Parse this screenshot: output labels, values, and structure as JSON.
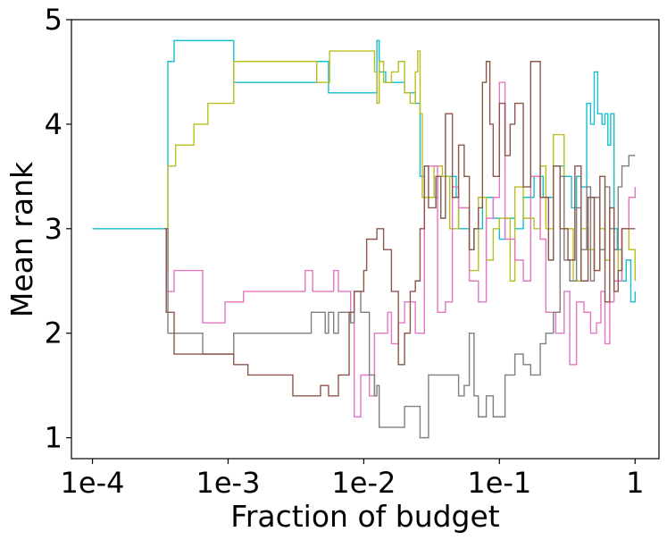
{
  "chart_data": {
    "type": "line",
    "title": "",
    "xlabel": "Fraction of budget",
    "ylabel": "Mean rank",
    "xscale": "log",
    "xlim": [
      7e-05,
      1.5
    ],
    "ylim": [
      0.8,
      5.0
    ],
    "grid": false,
    "legend": "none",
    "x_ticks": [
      {
        "value": 0.0001,
        "label": "1e-4"
      },
      {
        "value": 0.001,
        "label": "1e-3"
      },
      {
        "value": 0.01,
        "label": "1e-2"
      },
      {
        "value": 0.1,
        "label": "1e-1"
      },
      {
        "value": 1,
        "label": "1"
      }
    ],
    "y_ticks": [
      {
        "value": 1,
        "label": "1"
      },
      {
        "value": 2,
        "label": "2"
      },
      {
        "value": 3,
        "label": "3"
      },
      {
        "value": 4,
        "label": "4"
      },
      {
        "value": 5,
        "label": "5"
      }
    ],
    "series": [
      {
        "name": "cyan",
        "color": "#17becf",
        "points": [
          [
            0.0001,
            3.0
          ],
          [
            0.00034,
            3.0
          ],
          [
            0.00036,
            4.6
          ],
          [
            0.00039,
            4.6
          ],
          [
            0.0004,
            4.8
          ],
          [
            0.0011,
            4.8
          ],
          [
            0.0011,
            4.4
          ],
          [
            0.0045,
            4.4
          ],
          [
            0.0045,
            4.6
          ],
          [
            0.0055,
            4.6
          ],
          [
            0.0055,
            4.3
          ],
          [
            0.012,
            4.3
          ],
          [
            0.0125,
            4.8
          ],
          [
            0.013,
            4.5
          ],
          [
            0.0145,
            4.4
          ],
          [
            0.017,
            4.4
          ],
          [
            0.02,
            4.3
          ],
          [
            0.022,
            4.3
          ],
          [
            0.024,
            4.2
          ],
          [
            0.025,
            4.2
          ],
          [
            0.026,
            3.5
          ],
          [
            0.028,
            3.3
          ],
          [
            0.032,
            3.3
          ],
          [
            0.035,
            3.5
          ],
          [
            0.042,
            3.5
          ],
          [
            0.048,
            3.3
          ],
          [
            0.05,
            3.0
          ],
          [
            0.06,
            2.8
          ],
          [
            0.065,
            3.0
          ],
          [
            0.075,
            3.3
          ],
          [
            0.09,
            3.1
          ],
          [
            0.1,
            2.9
          ],
          [
            0.11,
            3.1
          ],
          [
            0.13,
            3.0
          ],
          [
            0.15,
            3.3
          ],
          [
            0.18,
            3.5
          ],
          [
            0.21,
            3.3
          ],
          [
            0.25,
            3.6
          ],
          [
            0.3,
            3.5
          ],
          [
            0.34,
            3.2
          ],
          [
            0.37,
            3.5
          ],
          [
            0.4,
            3.4
          ],
          [
            0.44,
            4.2
          ],
          [
            0.47,
            4.0
          ],
          [
            0.5,
            4.5
          ],
          [
            0.53,
            4.1
          ],
          [
            0.57,
            4.0
          ],
          [
            0.6,
            4.1
          ],
          [
            0.63,
            3.8
          ],
          [
            0.66,
            4.1
          ],
          [
            0.7,
            3.0
          ],
          [
            0.74,
            2.8
          ],
          [
            0.8,
            2.5
          ],
          [
            0.86,
            2.7
          ],
          [
            0.93,
            2.3
          ],
          [
            1.0,
            2.4
          ]
        ]
      },
      {
        "name": "olive",
        "color": "#bcbd22",
        "points": [
          [
            0.00034,
            3.0
          ],
          [
            0.00035,
            2.6
          ],
          [
            0.00036,
            3.6
          ],
          [
            0.0004,
            3.6
          ],
          [
            0.00041,
            3.8
          ],
          [
            0.00055,
            3.8
          ],
          [
            0.00056,
            4.0
          ],
          [
            0.0007,
            4.0
          ],
          [
            0.00071,
            4.2
          ],
          [
            0.0011,
            4.2
          ],
          [
            0.0011,
            4.6
          ],
          [
            0.0045,
            4.6
          ],
          [
            0.0045,
            4.4
          ],
          [
            0.0055,
            4.4
          ],
          [
            0.0056,
            4.7
          ],
          [
            0.011,
            4.7
          ],
          [
            0.012,
            4.5
          ],
          [
            0.0125,
            4.2
          ],
          [
            0.013,
            4.6
          ],
          [
            0.014,
            4.4
          ],
          [
            0.016,
            4.5
          ],
          [
            0.018,
            4.6
          ],
          [
            0.02,
            4.3
          ],
          [
            0.022,
            4.2
          ],
          [
            0.024,
            4.5
          ],
          [
            0.025,
            4.7
          ],
          [
            0.026,
            4.1
          ],
          [
            0.027,
            3.3
          ],
          [
            0.03,
            3.3
          ],
          [
            0.033,
            3.6
          ],
          [
            0.038,
            3.5
          ],
          [
            0.043,
            3.0
          ],
          [
            0.05,
            3.2
          ],
          [
            0.06,
            2.6
          ],
          [
            0.07,
            3.3
          ],
          [
            0.08,
            2.7
          ],
          [
            0.09,
            3.0
          ],
          [
            0.1,
            3.1
          ],
          [
            0.12,
            2.5
          ],
          [
            0.13,
            3.4
          ],
          [
            0.15,
            3.1
          ],
          [
            0.18,
            3.0
          ],
          [
            0.2,
            3.6
          ],
          [
            0.22,
            3.0
          ],
          [
            0.25,
            3.9
          ],
          [
            0.3,
            3.0
          ],
          [
            0.35,
            2.5
          ],
          [
            0.4,
            3.0
          ],
          [
            0.45,
            2.8
          ],
          [
            0.5,
            2.6
          ],
          [
            0.55,
            3.0
          ],
          [
            0.6,
            2.7
          ],
          [
            0.65,
            3.2
          ],
          [
            0.7,
            2.8
          ],
          [
            0.75,
            2.5
          ],
          [
            0.8,
            3.0
          ],
          [
            0.9,
            2.8
          ],
          [
            1.0,
            2.5
          ]
        ]
      },
      {
        "name": "pink",
        "color": "#e377c2",
        "points": [
          [
            0.00034,
            3.0
          ],
          [
            0.00035,
            2.4
          ],
          [
            0.00038,
            2.4
          ],
          [
            0.0004,
            2.6
          ],
          [
            0.00064,
            2.6
          ],
          [
            0.00065,
            2.1
          ],
          [
            0.0009,
            2.1
          ],
          [
            0.00095,
            2.3
          ],
          [
            0.0012,
            2.3
          ],
          [
            0.0013,
            2.4
          ],
          [
            0.0035,
            2.4
          ],
          [
            0.0037,
            2.6
          ],
          [
            0.004,
            2.6
          ],
          [
            0.0042,
            2.4
          ],
          [
            0.0055,
            2.4
          ],
          [
            0.006,
            2.6
          ],
          [
            0.0065,
            2.4
          ],
          [
            0.0075,
            2.4
          ],
          [
            0.008,
            2.2
          ],
          [
            0.0085,
            1.2
          ],
          [
            0.009,
            1.2
          ],
          [
            0.0095,
            1.6
          ],
          [
            0.01,
            1.6
          ],
          [
            0.011,
            1.4
          ],
          [
            0.012,
            2.0
          ],
          [
            0.013,
            2.0
          ],
          [
            0.015,
            2.2
          ],
          [
            0.016,
            1.9
          ],
          [
            0.018,
            2.1
          ],
          [
            0.02,
            2.3
          ],
          [
            0.024,
            2.0
          ],
          [
            0.027,
            2.0
          ],
          [
            0.028,
            3.6
          ],
          [
            0.032,
            3.6
          ],
          [
            0.035,
            2.2
          ],
          [
            0.04,
            2.3
          ],
          [
            0.045,
            3.4
          ],
          [
            0.05,
            3.2
          ],
          [
            0.06,
            2.5
          ],
          [
            0.07,
            2.3
          ],
          [
            0.08,
            3.1
          ],
          [
            0.09,
            3.3
          ],
          [
            0.1,
            4.4
          ],
          [
            0.11,
            2.9
          ],
          [
            0.13,
            2.7
          ],
          [
            0.15,
            2.5
          ],
          [
            0.17,
            3.5
          ],
          [
            0.2,
            2.9
          ],
          [
            0.22,
            2.2
          ],
          [
            0.26,
            2.0
          ],
          [
            0.3,
            2.4
          ],
          [
            0.33,
            1.7
          ],
          [
            0.37,
            2.3
          ],
          [
            0.42,
            2.2
          ],
          [
            0.47,
            2.0
          ],
          [
            0.52,
            2.1
          ],
          [
            0.56,
            2.4
          ],
          [
            0.6,
            1.9
          ],
          [
            0.65,
            2.3
          ],
          [
            0.7,
            2.5
          ],
          [
            0.8,
            3.0
          ],
          [
            0.9,
            3.3
          ],
          [
            1.0,
            3.4
          ]
        ]
      },
      {
        "name": "gray",
        "color": "#7f7f7f",
        "points": [
          [
            0.00034,
            3.0
          ],
          [
            0.00036,
            2.0
          ],
          [
            0.0006,
            2.0
          ],
          [
            0.00065,
            1.8
          ],
          [
            0.001,
            1.8
          ],
          [
            0.0011,
            2.0
          ],
          [
            0.004,
            2.0
          ],
          [
            0.0041,
            2.2
          ],
          [
            0.0048,
            2.2
          ],
          [
            0.0052,
            2.0
          ],
          [
            0.0055,
            2.2
          ],
          [
            0.006,
            2.0
          ],
          [
            0.0065,
            2.2
          ],
          [
            0.0075,
            2.2
          ],
          [
            0.008,
            2.1
          ],
          [
            0.0085,
            2.4
          ],
          [
            0.009,
            2.4
          ],
          [
            0.0095,
            2.2
          ],
          [
            0.01,
            2.2
          ],
          [
            0.011,
            1.6
          ],
          [
            0.012,
            1.4
          ],
          [
            0.0125,
            1.5
          ],
          [
            0.013,
            1.1
          ],
          [
            0.018,
            1.1
          ],
          [
            0.02,
            1.3
          ],
          [
            0.024,
            1.3
          ],
          [
            0.026,
            1.0
          ],
          [
            0.03,
            1.6
          ],
          [
            0.035,
            1.6
          ],
          [
            0.04,
            1.6
          ],
          [
            0.045,
            1.6
          ],
          [
            0.05,
            1.4
          ],
          [
            0.055,
            1.5
          ],
          [
            0.06,
            2.0
          ],
          [
            0.065,
            1.4
          ],
          [
            0.07,
            1.2
          ],
          [
            0.08,
            1.4
          ],
          [
            0.09,
            1.2
          ],
          [
            0.11,
            1.6
          ],
          [
            0.13,
            1.8
          ],
          [
            0.15,
            1.7
          ],
          [
            0.17,
            1.6
          ],
          [
            0.2,
            1.9
          ],
          [
            0.22,
            2.0
          ],
          [
            0.25,
            2.2
          ],
          [
            0.28,
            3.5
          ],
          [
            0.3,
            2.7
          ],
          [
            0.33,
            2.5
          ],
          [
            0.37,
            3.2
          ],
          [
            0.4,
            2.8
          ],
          [
            0.44,
            3.4
          ],
          [
            0.47,
            2.5
          ],
          [
            0.5,
            3.3
          ],
          [
            0.55,
            2.8
          ],
          [
            0.6,
            3.4
          ],
          [
            0.65,
            3.0
          ],
          [
            0.7,
            2.8
          ],
          [
            0.75,
            3.4
          ],
          [
            0.8,
            3.6
          ],
          [
            0.85,
            3.6
          ],
          [
            0.9,
            3.7
          ],
          [
            1.0,
            3.7
          ]
        ]
      },
      {
        "name": "brown",
        "color": "#8c564b",
        "points": [
          [
            0.00034,
            3.0
          ],
          [
            0.00035,
            2.2
          ],
          [
            0.00038,
            2.2
          ],
          [
            0.0004,
            1.8
          ],
          [
            0.001,
            1.8
          ],
          [
            0.0011,
            1.7
          ],
          [
            0.0013,
            1.7
          ],
          [
            0.0014,
            1.6
          ],
          [
            0.0028,
            1.6
          ],
          [
            0.003,
            1.4
          ],
          [
            0.0045,
            1.4
          ],
          [
            0.0048,
            1.5
          ],
          [
            0.0052,
            1.5
          ],
          [
            0.0055,
            1.4
          ],
          [
            0.006,
            1.4
          ],
          [
            0.0065,
            1.6
          ],
          [
            0.0075,
            1.6
          ],
          [
            0.0078,
            2.2
          ],
          [
            0.008,
            2.2
          ],
          [
            0.0085,
            2.4
          ],
          [
            0.0095,
            2.4
          ],
          [
            0.01,
            2.6
          ],
          [
            0.0105,
            2.9
          ],
          [
            0.0125,
            3.0
          ],
          [
            0.014,
            2.8
          ],
          [
            0.016,
            2.4
          ],
          [
            0.018,
            1.7
          ],
          [
            0.02,
            2.0
          ],
          [
            0.022,
            2.4
          ],
          [
            0.024,
            2.5
          ],
          [
            0.026,
            3.0
          ],
          [
            0.028,
            3.6
          ],
          [
            0.03,
            3.2
          ],
          [
            0.034,
            3.5
          ],
          [
            0.037,
            3.1
          ],
          [
            0.04,
            4.1
          ],
          [
            0.045,
            3.3
          ],
          [
            0.05,
            3.8
          ],
          [
            0.055,
            3.5
          ],
          [
            0.06,
            2.8
          ],
          [
            0.065,
            3.0
          ],
          [
            0.07,
            3.2
          ],
          [
            0.075,
            4.4
          ],
          [
            0.08,
            4.6
          ],
          [
            0.085,
            4.0
          ],
          [
            0.09,
            3.5
          ],
          [
            0.1,
            4.2
          ],
          [
            0.11,
            3.7
          ],
          [
            0.12,
            4.0
          ],
          [
            0.13,
            4.2
          ],
          [
            0.15,
            3.4
          ],
          [
            0.17,
            4.6
          ],
          [
            0.2,
            3.3
          ],
          [
            0.23,
            2.7
          ],
          [
            0.25,
            3.6
          ],
          [
            0.28,
            3.0
          ],
          [
            0.32,
            2.7
          ],
          [
            0.36,
            3.6
          ],
          [
            0.4,
            2.5
          ],
          [
            0.45,
            3.3
          ],
          [
            0.5,
            2.6
          ],
          [
            0.55,
            3.5
          ],
          [
            0.6,
            2.3
          ],
          [
            0.65,
            3.2
          ],
          [
            0.7,
            2.4
          ],
          [
            0.75,
            2.6
          ],
          [
            0.8,
            3.0
          ],
          [
            0.9,
            3.0
          ],
          [
            1.0,
            3.0
          ]
        ]
      }
    ]
  }
}
